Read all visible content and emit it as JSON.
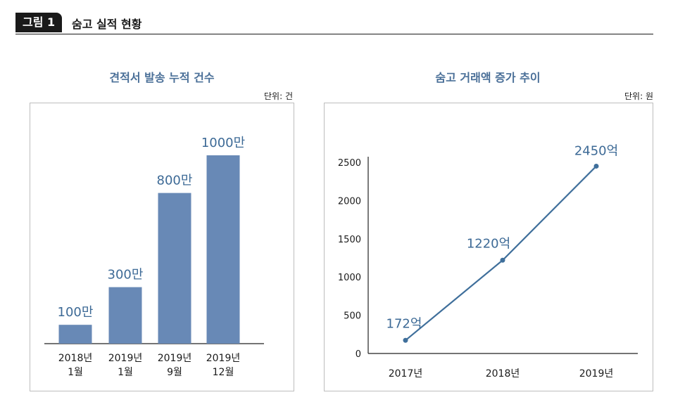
{
  "header": {
    "badge": "그림 1",
    "title": "숨고 실적 현황"
  },
  "colors": {
    "bar": "#6889b6",
    "line": "#3f6f9b",
    "value_label": "#3d6a96",
    "title": "#4a6f98"
  },
  "chart_data": [
    {
      "type": "bar",
      "title": "견적서 발송 누적 건수",
      "unit": "단위: 건",
      "categories": [
        [
          "2018년",
          "1월"
        ],
        [
          "2019년",
          "1월"
        ],
        [
          "2019년",
          "9월"
        ],
        [
          "2019년",
          "12월"
        ]
      ],
      "values": [
        100,
        300,
        800,
        1000
      ],
      "data_labels": [
        "100만",
        "300만",
        "800만",
        "1000만"
      ],
      "ylim": [
        0,
        1000
      ]
    },
    {
      "type": "line",
      "title": "숨고 거래액 증가 추이",
      "unit": "단위: 원",
      "x": [
        "2017년",
        "2018년",
        "2019년"
      ],
      "values": [
        172,
        1220,
        2450
      ],
      "data_labels": [
        "172억",
        "1220억",
        "2450억"
      ],
      "ylim": [
        0,
        2500
      ],
      "yticks": [
        0,
        500,
        1000,
        1500,
        2000,
        2500
      ],
      "grid": false
    }
  ]
}
